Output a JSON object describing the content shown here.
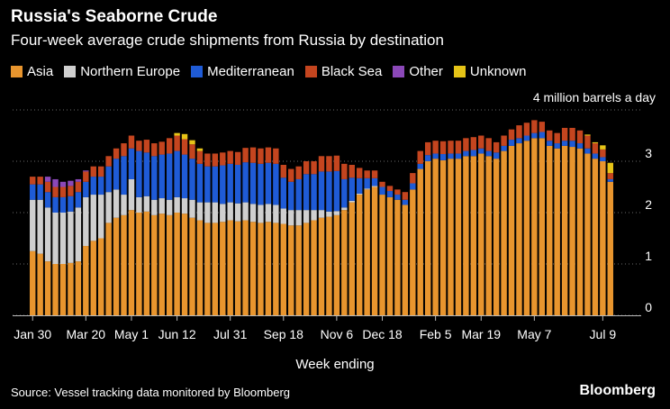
{
  "title": "Russia's Seaborne Crude",
  "subtitle": "Four-week average crude shipments from Russia by destination",
  "unit_label": "4 million barrels a day",
  "source": "Source: Vessel tracking data monitored by Bloomberg",
  "brand": "Bloomberg",
  "chart_data": {
    "type": "bar",
    "stacked": true,
    "title": "Russia's Seaborne Crude",
    "subtitle": "Four-week average crude shipments from Russia by destination",
    "xlabel": "Week ending",
    "ylabel": "",
    "ylim": [
      0,
      4
    ],
    "yticks": [
      0,
      1,
      2,
      3
    ],
    "grid": true,
    "legend_position": "top-left",
    "xtick_labels": [
      {
        "index": 0,
        "label": "Jan 30"
      },
      {
        "index": 7,
        "label": "Mar 20"
      },
      {
        "index": 13,
        "label": "May 1"
      },
      {
        "index": 19,
        "label": "Jun 12"
      },
      {
        "index": 26,
        "label": "Jul 31"
      },
      {
        "index": 33,
        "label": "Sep 18"
      },
      {
        "index": 40,
        "label": "Nov 6"
      },
      {
        "index": 46,
        "label": "Dec 18"
      },
      {
        "index": 53,
        "label": "Feb 5"
      },
      {
        "index": 59,
        "label": "Mar 19"
      },
      {
        "index": 66,
        "label": "May 7"
      },
      {
        "index": 75,
        "label": "Jul 9"
      }
    ],
    "series": [
      {
        "name": "Asia",
        "color": "#e8952e",
        "values": [
          1.25,
          1.2,
          1.05,
          1.0,
          1.0,
          1.02,
          1.05,
          1.35,
          1.45,
          1.5,
          1.8,
          1.9,
          1.95,
          2.05,
          2.0,
          2.02,
          1.95,
          1.98,
          1.95,
          2.0,
          1.98,
          1.9,
          1.85,
          1.8,
          1.8,
          1.82,
          1.85,
          1.83,
          1.85,
          1.82,
          1.8,
          1.82,
          1.8,
          1.78,
          1.75,
          1.75,
          1.8,
          1.85,
          1.9,
          1.92,
          1.95,
          2.05,
          2.2,
          2.35,
          2.45,
          2.5,
          2.35,
          2.3,
          2.25,
          2.15,
          2.45,
          2.85,
          3.0,
          3.05,
          3.02,
          3.05,
          3.05,
          3.1,
          3.1,
          3.15,
          3.1,
          3.05,
          3.2,
          3.3,
          3.35,
          3.4,
          3.45,
          3.45,
          3.3,
          3.25,
          3.3,
          3.28,
          3.25,
          3.15,
          3.05,
          3.0,
          2.6
        ]
      },
      {
        "name": "Northern Europe",
        "color": "#cfcfcf",
        "values": [
          1.0,
          1.05,
          1.05,
          1.0,
          1.0,
          1.0,
          1.05,
          0.95,
          0.9,
          0.85,
          0.6,
          0.55,
          0.4,
          0.6,
          0.3,
          0.3,
          0.3,
          0.3,
          0.3,
          0.3,
          0.3,
          0.35,
          0.35,
          0.4,
          0.4,
          0.35,
          0.35,
          0.35,
          0.35,
          0.35,
          0.35,
          0.35,
          0.35,
          0.3,
          0.3,
          0.3,
          0.25,
          0.2,
          0.15,
          0.1,
          0.08,
          0.05,
          0.03,
          0.02,
          0.02,
          0.02,
          0.0,
          0.0,
          0.0,
          0.0,
          0.0,
          0.0,
          0.0,
          0.0,
          0.0,
          0.0,
          0.0,
          0.0,
          0.0,
          0.0,
          0.0,
          0.0,
          0.0,
          0.0,
          0.0,
          0.0,
          0.0,
          0.0,
          0.0,
          0.0,
          0.0,
          0.0,
          0.0,
          0.0,
          0.0,
          0.0,
          0.0
        ]
      },
      {
        "name": "Mediterranean",
        "color": "#1f5bd6",
        "values": [
          0.3,
          0.3,
          0.3,
          0.3,
          0.3,
          0.3,
          0.3,
          0.3,
          0.35,
          0.35,
          0.5,
          0.6,
          0.75,
          0.6,
          0.9,
          0.85,
          0.85,
          0.85,
          0.9,
          0.9,
          0.85,
          0.8,
          0.75,
          0.7,
          0.7,
          0.75,
          0.75,
          0.75,
          0.78,
          0.8,
          0.8,
          0.8,
          0.8,
          0.6,
          0.55,
          0.6,
          0.7,
          0.7,
          0.75,
          0.78,
          0.78,
          0.55,
          0.45,
          0.3,
          0.2,
          0.15,
          0.15,
          0.12,
          0.1,
          0.1,
          0.12,
          0.1,
          0.12,
          0.1,
          0.12,
          0.1,
          0.1,
          0.1,
          0.12,
          0.1,
          0.1,
          0.12,
          0.1,
          0.12,
          0.1,
          0.1,
          0.1,
          0.12,
          0.1,
          0.1,
          0.1,
          0.12,
          0.1,
          0.1,
          0.1,
          0.08,
          0.05
        ]
      },
      {
        "name": "Black Sea",
        "color": "#c4451f",
        "values": [
          0.15,
          0.15,
          0.2,
          0.2,
          0.2,
          0.2,
          0.2,
          0.2,
          0.2,
          0.2,
          0.2,
          0.2,
          0.25,
          0.25,
          0.2,
          0.25,
          0.25,
          0.25,
          0.3,
          0.3,
          0.3,
          0.28,
          0.25,
          0.25,
          0.25,
          0.25,
          0.25,
          0.25,
          0.28,
          0.3,
          0.3,
          0.3,
          0.3,
          0.25,
          0.25,
          0.25,
          0.25,
          0.25,
          0.3,
          0.3,
          0.3,
          0.3,
          0.25,
          0.2,
          0.15,
          0.15,
          0.1,
          0.1,
          0.1,
          0.15,
          0.2,
          0.25,
          0.25,
          0.25,
          0.25,
          0.25,
          0.25,
          0.25,
          0.25,
          0.25,
          0.25,
          0.2,
          0.2,
          0.2,
          0.25,
          0.25,
          0.25,
          0.2,
          0.2,
          0.2,
          0.25,
          0.25,
          0.25,
          0.25,
          0.2,
          0.15,
          0.12
        ]
      },
      {
        "name": "Other",
        "color": "#8b48b8",
        "values": [
          0.0,
          0.0,
          0.1,
          0.15,
          0.1,
          0.1,
          0.05,
          0.02,
          0.0,
          0.0,
          0.0,
          0.0,
          0.0,
          0.0,
          0.0,
          0.0,
          0.0,
          0.0,
          0.0,
          0.0,
          0.0,
          0.0,
          0.0,
          0.0,
          0.0,
          0.0,
          0.0,
          0.0,
          0.0,
          0.0,
          0.0,
          0.0,
          0.0,
          0.0,
          0.0,
          0.0,
          0.0,
          0.0,
          0.0,
          0.0,
          0.0,
          0.0,
          0.0,
          0.0,
          0.0,
          0.0,
          0.0,
          0.0,
          0.0,
          0.0,
          0.0,
          0.0,
          0.0,
          0.0,
          0.0,
          0.0,
          0.0,
          0.0,
          0.0,
          0.0,
          0.0,
          0.0,
          0.0,
          0.0,
          0.0,
          0.0,
          0.0,
          0.0,
          0.0,
          0.0,
          0.0,
          0.0,
          0.0,
          0.0,
          0.0,
          0.0,
          0.0
        ]
      },
      {
        "name": "Unknown",
        "color": "#e6c417",
        "values": [
          0.0,
          0.0,
          0.0,
          0.0,
          0.0,
          0.0,
          0.0,
          0.0,
          0.0,
          0.0,
          0.0,
          0.0,
          0.0,
          0.0,
          0.0,
          0.0,
          0.0,
          0.0,
          0.0,
          0.05,
          0.1,
          0.08,
          0.05,
          0.0,
          0.0,
          0.0,
          0.0,
          0.0,
          0.0,
          0.0,
          0.0,
          0.0,
          0.0,
          0.0,
          0.0,
          0.0,
          0.0,
          0.0,
          0.0,
          0.0,
          0.0,
          0.0,
          0.0,
          0.0,
          0.0,
          0.0,
          0.0,
          0.0,
          0.0,
          0.0,
          0.0,
          0.0,
          0.0,
          0.0,
          0.0,
          0.0,
          0.0,
          0.0,
          0.0,
          0.0,
          0.0,
          0.0,
          0.0,
          0.0,
          0.0,
          0.0,
          0.0,
          0.0,
          0.0,
          0.0,
          0.0,
          0.0,
          0.0,
          0.02,
          0.02,
          0.08,
          0.2
        ]
      }
    ]
  }
}
